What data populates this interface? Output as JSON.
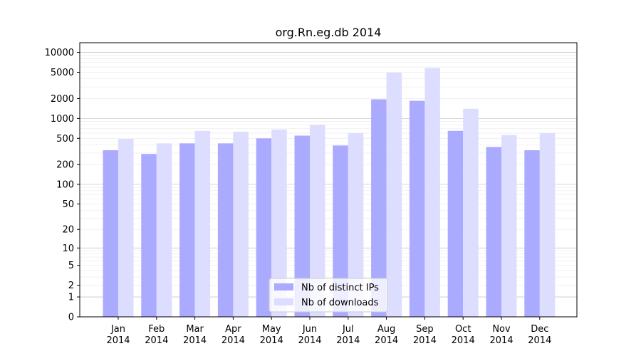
{
  "chart_data": {
    "type": "bar",
    "title": "org.Rn.eg.db 2014",
    "xlabel": "",
    "ylabel": "",
    "y_scale": "log1p",
    "y_ticks": [
      0,
      1,
      2,
      5,
      10,
      20,
      50,
      100,
      200,
      500,
      1000,
      2000,
      5000,
      10000
    ],
    "y_tick_labels": [
      "0",
      "1",
      "2",
      "5",
      "10",
      "20",
      "50",
      "100",
      "200",
      "500",
      "1000",
      "2000",
      "5000",
      "10000"
    ],
    "ylim": [
      0,
      14000
    ],
    "categories": [
      "Jan\n2014",
      "Feb\n2014",
      "Mar\n2014",
      "Apr\n2014",
      "May\n2014",
      "Jun\n2014",
      "Jul\n2014",
      "Aug\n2014",
      "Sep\n2014",
      "Oct\n2014",
      "Nov\n2014",
      "Dec\n2014"
    ],
    "category_lines": [
      [
        "Jan",
        "2014"
      ],
      [
        "Feb",
        "2014"
      ],
      [
        "Mar",
        "2014"
      ],
      [
        "Apr",
        "2014"
      ],
      [
        "May",
        "2014"
      ],
      [
        "Jun",
        "2014"
      ],
      [
        "Jul",
        "2014"
      ],
      [
        "Aug",
        "2014"
      ],
      [
        "Sep",
        "2014"
      ],
      [
        "Oct",
        "2014"
      ],
      [
        "Nov",
        "2014"
      ],
      [
        "Dec",
        "2014"
      ]
    ],
    "series": [
      {
        "name": "Nb of distinct IPs",
        "color": "#aaaaff",
        "values": [
          330,
          290,
          420,
          420,
          500,
          550,
          390,
          1950,
          1850,
          650,
          370,
          330
        ]
      },
      {
        "name": "Nb of downloads",
        "color": "#ddddff",
        "values": [
          490,
          420,
          650,
          630,
          680,
          800,
          600,
          4950,
          5800,
          1400,
          560,
          600
        ]
      }
    ],
    "grid": true,
    "legend_position": "lower-center"
  }
}
